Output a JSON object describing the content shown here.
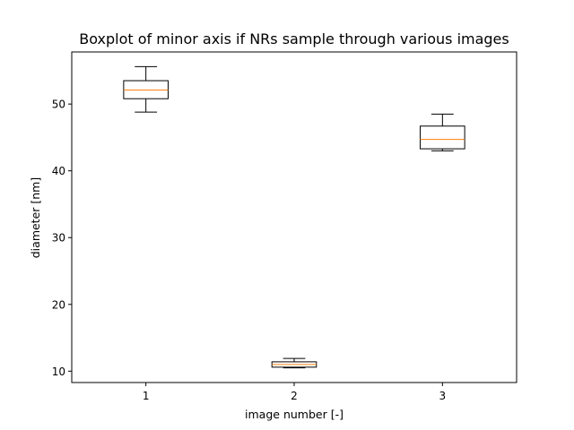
{
  "chart_data": {
    "type": "boxplot",
    "title": "Boxplot of minor axis if NRs sample through various images",
    "xlabel": "image number [-]",
    "ylabel": "diameter [nm]",
    "categories": [
      "1",
      "2",
      "3"
    ],
    "ylim": [
      8.3,
      57.8
    ],
    "yticks": [
      10,
      20,
      30,
      40,
      50
    ],
    "ytick_labels": [
      "10",
      "20",
      "30",
      "40",
      "50"
    ],
    "grid": false,
    "boxes": [
      {
        "category": "1",
        "whisker_low": 48.8,
        "q1": 50.8,
        "median": 52.1,
        "q3": 53.5,
        "whisker_high": 55.6
      },
      {
        "category": "2",
        "whisker_low": 10.5,
        "q1": 10.6,
        "median": 11.0,
        "q3": 11.4,
        "whisker_high": 11.9
      },
      {
        "category": "3",
        "whisker_low": 43.0,
        "q1": 43.3,
        "median": 44.7,
        "q3": 46.7,
        "whisker_high": 48.5
      }
    ],
    "colors": {
      "box": "#000000",
      "median": "#ff7f0e",
      "axes": "#000000"
    }
  }
}
